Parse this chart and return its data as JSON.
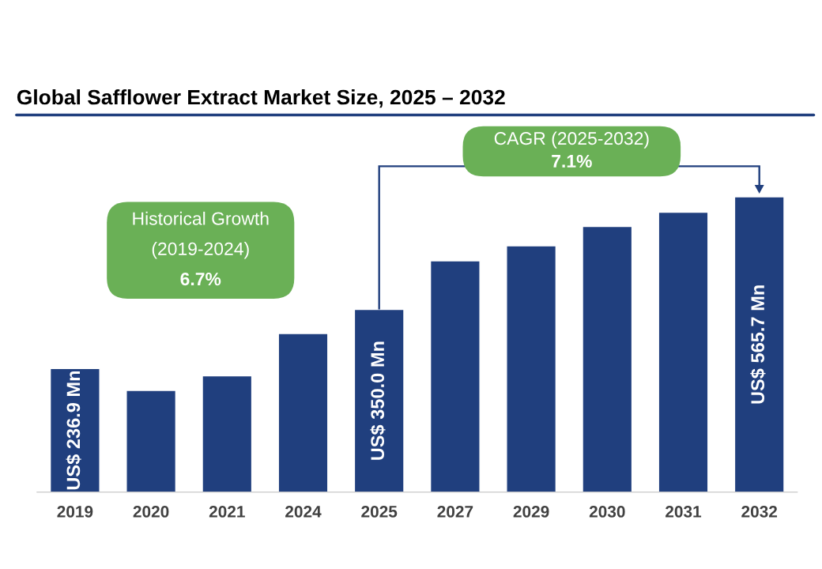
{
  "chart_data": {
    "type": "bar",
    "title": "Global Safflower Extract Market Size, 2025 – 2032",
    "categories": [
      "2019",
      "2020",
      "2021",
      "2024",
      "2025",
      "2027",
      "2029",
      "2030",
      "2031",
      "2032"
    ],
    "values": [
      236.9,
      195,
      223,
      304,
      350,
      443,
      472,
      509,
      536,
      565.7
    ],
    "value_labels": [
      "US$ 236.9 Mn",
      null,
      null,
      null,
      "US$ 350.0 Mn",
      null,
      null,
      null,
      null,
      "US$ 565.7 Mn"
    ],
    "color": "#203f7e",
    "annotations": [
      "Historical Growth\n(2019-2024)\n6.7%",
      "CAGR (2025-2032)\n7.1%"
    ],
    "grid": false,
    "legend": false
  }
}
